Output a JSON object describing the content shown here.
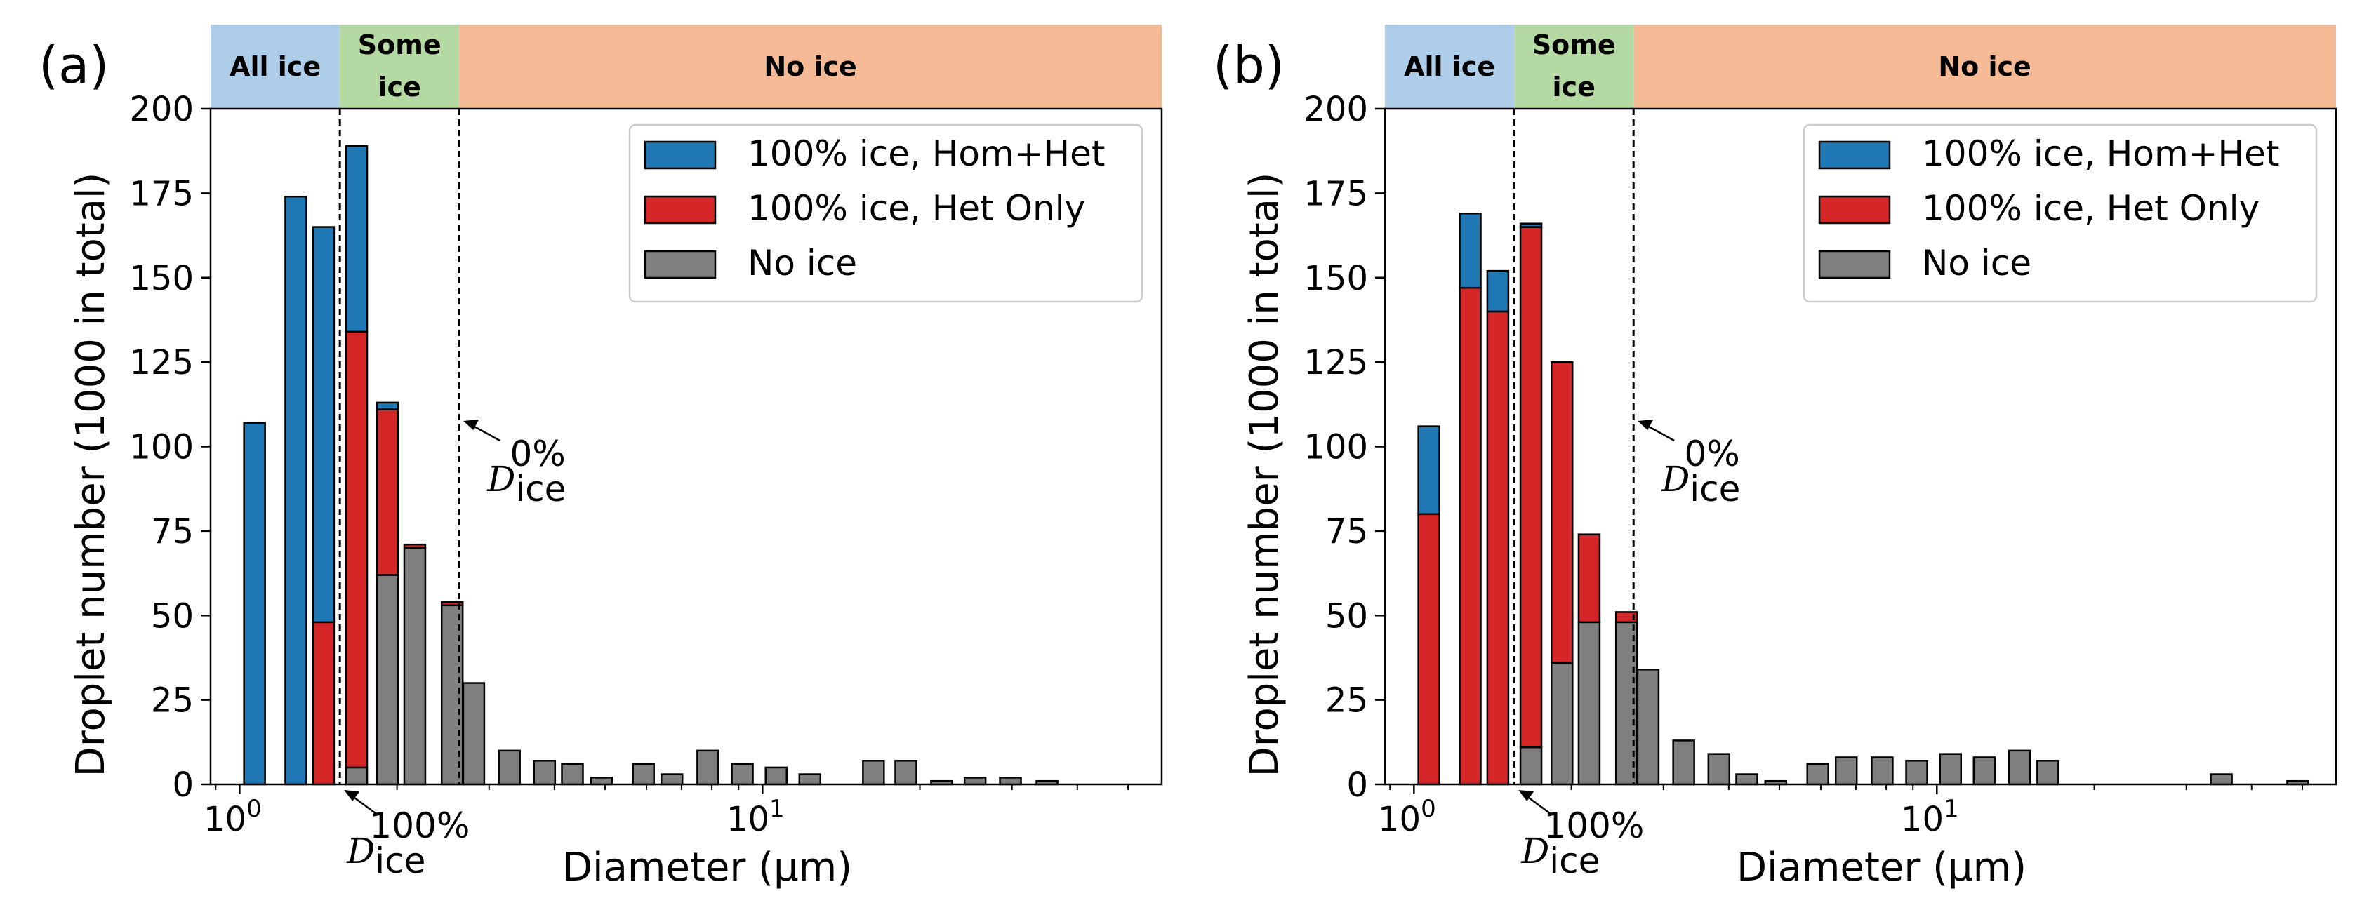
{
  "chart_data": [
    {
      "type": "bar",
      "panel_label": "(a)",
      "ylabel": "Droplet number (1000 in total)",
      "xlabel": "Diameter (μm)",
      "xscale": "log",
      "xlim": [
        0.88,
        58
      ],
      "ylim": [
        0,
        200
      ],
      "yticks": [
        0,
        25,
        50,
        75,
        100,
        125,
        150,
        175,
        200
      ],
      "xticks": [
        {
          "value": 1,
          "base": "10",
          "exp": "0"
        },
        {
          "value": 10,
          "base": "10",
          "exp": "1"
        }
      ],
      "grid": false,
      "legend_position": "top-right",
      "legend": [
        {
          "name": "100% ice, Hom+Het",
          "color": "#1f77b4"
        },
        {
          "name": "100% ice, Het Only",
          "color": "#d62728"
        },
        {
          "name": "No ice",
          "color": "#7f7f7f"
        }
      ],
      "bands": [
        {
          "label": [
            "All ice"
          ],
          "from": 0.88,
          "to": 1.555,
          "color": "#aecde9"
        },
        {
          "label": [
            "Some",
            "ice"
          ],
          "from": 1.555,
          "to": 2.63,
          "color": "#b5d9a3"
        },
        {
          "label": [
            "No ice"
          ],
          "from": 2.63,
          "to": 58,
          "color": "#f5bb97"
        }
      ],
      "vlines": [
        {
          "x": 1.555,
          "label_main": "D",
          "label_sub": "ice",
          "label_sup": "100%",
          "position": "below"
        },
        {
          "x": 2.63,
          "label_main": "D",
          "label_sub": "ice",
          "label_sup": "0%",
          "position": "right"
        }
      ],
      "bins": [
        {
          "x": 1.068,
          "nonice": 0,
          "het": 0,
          "homhet": 107
        },
        {
          "x": 1.281,
          "nonice": 0,
          "het": 0,
          "homhet": 174
        },
        {
          "x": 1.447,
          "nonice": 0,
          "het": 48,
          "homhet": 117
        },
        {
          "x": 1.674,
          "nonice": 5,
          "het": 129,
          "homhet": 55
        },
        {
          "x": 1.919,
          "nonice": 62,
          "het": 49,
          "homhet": 2
        },
        {
          "x": 2.163,
          "nonice": 70,
          "het": 1,
          "homhet": 0
        },
        {
          "x": 2.55,
          "nonice": 53,
          "het": 1,
          "homhet": 0
        },
        {
          "x": 2.804,
          "nonice": 30,
          "het": 0,
          "homhet": 0
        },
        {
          "x": 3.28,
          "nonice": 10,
          "het": 0,
          "homhet": 0
        },
        {
          "x": 3.83,
          "nonice": 7,
          "het": 0,
          "homhet": 0
        },
        {
          "x": 4.33,
          "nonice": 6,
          "het": 0,
          "homhet": 0
        },
        {
          "x": 4.92,
          "nonice": 2,
          "het": 0,
          "homhet": 0
        },
        {
          "x": 5.92,
          "nonice": 6,
          "het": 0,
          "homhet": 0
        },
        {
          "x": 6.71,
          "nonice": 3,
          "het": 0,
          "homhet": 0
        },
        {
          "x": 7.86,
          "nonice": 10,
          "het": 0,
          "homhet": 0
        },
        {
          "x": 9.15,
          "nonice": 6,
          "het": 0,
          "homhet": 0
        },
        {
          "x": 10.62,
          "nonice": 5,
          "het": 0,
          "homhet": 0
        },
        {
          "x": 12.32,
          "nonice": 3,
          "het": 0,
          "homhet": 0
        },
        {
          "x": 16.3,
          "nonice": 7,
          "het": 0,
          "homhet": 0
        },
        {
          "x": 18.8,
          "nonice": 7,
          "het": 0,
          "homhet": 0
        },
        {
          "x": 22.0,
          "nonice": 1,
          "het": 0,
          "homhet": 0
        },
        {
          "x": 25.5,
          "nonice": 2,
          "het": 0,
          "homhet": 0
        },
        {
          "x": 29.8,
          "nonice": 2,
          "het": 0,
          "homhet": 0
        },
        {
          "x": 35.0,
          "nonice": 1,
          "het": 0,
          "homhet": 0
        }
      ]
    },
    {
      "type": "bar",
      "panel_label": "(b)",
      "ylabel": "Droplet number (1000 in total)",
      "xlabel": "Diameter (μm)",
      "xscale": "log",
      "xlim": [
        0.88,
        58
      ],
      "ylim": [
        0,
        200
      ],
      "yticks": [
        0,
        25,
        50,
        75,
        100,
        125,
        150,
        175,
        200
      ],
      "xticks": [
        {
          "value": 1,
          "base": "10",
          "exp": "0"
        },
        {
          "value": 10,
          "base": "10",
          "exp": "1"
        }
      ],
      "grid": false,
      "legend_position": "top-right",
      "legend": [
        {
          "name": "100% ice, Hom+Het",
          "color": "#1f77b4"
        },
        {
          "name": "100% ice, Het Only",
          "color": "#d62728"
        },
        {
          "name": "No ice",
          "color": "#7f7f7f"
        }
      ],
      "bands": [
        {
          "label": [
            "All ice"
          ],
          "from": 0.88,
          "to": 1.555,
          "color": "#aecde9"
        },
        {
          "label": [
            "Some",
            "ice"
          ],
          "from": 1.555,
          "to": 2.63,
          "color": "#b5d9a3"
        },
        {
          "label": [
            "No ice"
          ],
          "from": 2.63,
          "to": 58,
          "color": "#f5bb97"
        }
      ],
      "vlines": [
        {
          "x": 1.555,
          "label_main": "D",
          "label_sub": "ice",
          "label_sup": "100%",
          "position": "below"
        },
        {
          "x": 2.63,
          "label_main": "D",
          "label_sub": "ice",
          "label_sup": "0%",
          "position": "right"
        }
      ],
      "bins": [
        {
          "x": 1.068,
          "nonice": 0,
          "het": 80,
          "homhet": 26
        },
        {
          "x": 1.281,
          "nonice": 0,
          "het": 147,
          "homhet": 22
        },
        {
          "x": 1.447,
          "nonice": 0,
          "het": 140,
          "homhet": 12
        },
        {
          "x": 1.674,
          "nonice": 11,
          "het": 154,
          "homhet": 1
        },
        {
          "x": 1.919,
          "nonice": 36,
          "het": 89,
          "homhet": 0
        },
        {
          "x": 2.163,
          "nonice": 48,
          "het": 26,
          "homhet": 0
        },
        {
          "x": 2.55,
          "nonice": 48,
          "het": 3,
          "homhet": 0
        },
        {
          "x": 2.804,
          "nonice": 34,
          "het": 0,
          "homhet": 0
        },
        {
          "x": 3.28,
          "nonice": 13,
          "het": 0,
          "homhet": 0
        },
        {
          "x": 3.83,
          "nonice": 9,
          "het": 0,
          "homhet": 0
        },
        {
          "x": 4.33,
          "nonice": 3,
          "het": 0,
          "homhet": 0
        },
        {
          "x": 4.92,
          "nonice": 1,
          "het": 0,
          "homhet": 0
        },
        {
          "x": 5.92,
          "nonice": 6,
          "het": 0,
          "homhet": 0
        },
        {
          "x": 6.71,
          "nonice": 8,
          "het": 0,
          "homhet": 0
        },
        {
          "x": 7.86,
          "nonice": 8,
          "het": 0,
          "homhet": 0
        },
        {
          "x": 9.15,
          "nonice": 7,
          "het": 0,
          "homhet": 0
        },
        {
          "x": 10.62,
          "nonice": 9,
          "het": 0,
          "homhet": 0
        },
        {
          "x": 12.32,
          "nonice": 8,
          "het": 0,
          "homhet": 0
        },
        {
          "x": 14.4,
          "nonice": 10,
          "het": 0,
          "homhet": 0
        },
        {
          "x": 16.3,
          "nonice": 7,
          "het": 0,
          "homhet": 0
        },
        {
          "x": 35.0,
          "nonice": 3,
          "het": 0,
          "homhet": 0
        },
        {
          "x": 49.0,
          "nonice": 1,
          "het": 0,
          "homhet": 0
        }
      ]
    }
  ]
}
